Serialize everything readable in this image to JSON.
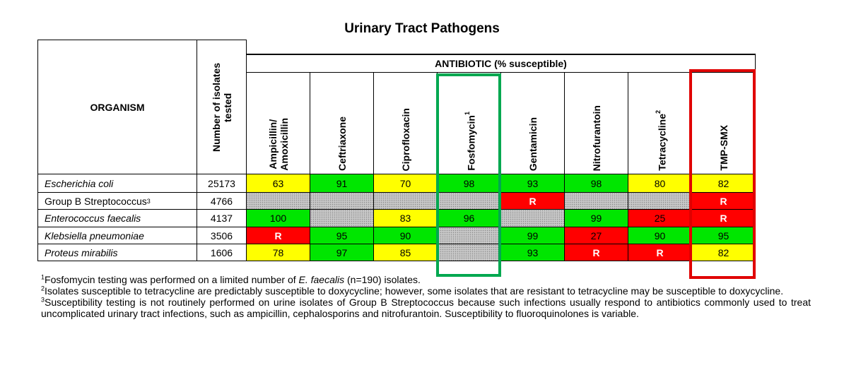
{
  "title": "Urinary Tract Pathogens",
  "header": {
    "organism": "ORGANISM",
    "isolates_line1": "Number of isolates",
    "isolates_line2": "tested",
    "antibiotic": "ANTIBIOTIC (% susceptible)",
    "drugs": [
      {
        "line1": "Ampicillin/",
        "line2": "Amoxicillin",
        "sup": ""
      },
      {
        "line1": "Ceftriaxone",
        "line2": "",
        "sup": ""
      },
      {
        "line1": "Ciprofloxacin",
        "line2": "",
        "sup": ""
      },
      {
        "line1": "Fosfomycin",
        "line2": "",
        "sup": "1"
      },
      {
        "line1": "Gentamicin",
        "line2": "",
        "sup": ""
      },
      {
        "line1": "Nitrofurantoin",
        "line2": "",
        "sup": ""
      },
      {
        "line1": "Tetracycline",
        "line2": "",
        "sup": "2"
      },
      {
        "line1": "TMP-SMX",
        "line2": "",
        "sup": ""
      }
    ]
  },
  "rows": [
    {
      "organism": "Escherichia coli",
      "sup": "",
      "isolates": "25173",
      "values": [
        "63",
        "91",
        "70",
        "98",
        "93",
        "98",
        "80",
        "82"
      ]
    },
    {
      "organism": "Group B Streptococcus",
      "sup": "3",
      "isolates": "4766",
      "values": [
        "",
        "",
        "",
        "",
        "R",
        "",
        "",
        "R"
      ]
    },
    {
      "organism": "Enterococcus faecalis",
      "sup": "",
      "isolates": "4137",
      "values": [
        "100",
        "",
        "83",
        "96",
        "",
        "99",
        "25",
        "R"
      ]
    },
    {
      "organism": "Klebsiella pneumoniae",
      "sup": "",
      "isolates": "3506",
      "values": [
        "R",
        "95",
        "90",
        "",
        "99",
        "27",
        "90",
        "95"
      ]
    },
    {
      "organism": "Proteus mirabilis",
      "sup": "",
      "isolates": "1606",
      "values": [
        "78",
        "97",
        "85",
        "",
        "93",
        "R",
        "R",
        "82"
      ]
    }
  ],
  "colors": {
    "yellow": "#ffff00",
    "green": "#00e600",
    "red": "#ff0000",
    "not_tested": "#c8c8c8",
    "highlight_green": "#00a850",
    "highlight_red": "#e00000"
  },
  "footnotes": {
    "n1_sup": "1",
    "n1_a": "Fosfomycin testing was performed on a limited number of ",
    "n1_ital": "E. faecalis",
    "n1_b": " (n=190) isolates.",
    "n2_sup": "2",
    "n2_text": "Isolates susceptible to tetracycline are predictably susceptible to doxycycline; however, some isolates that are resistant to tetracycline may be susceptible to doxycycline.",
    "n3_sup": "3",
    "n3_text": "Susceptibility testing is not routinely performed on urine isolates of Group B Streptococcus because such infections usually respond to antibiotics commonly used to treat uncomplicated urinary tract infections, such as ampicillin, cephalosporins and nitrofurantoin. Susceptibility to fluoroquinolones is variable."
  }
}
